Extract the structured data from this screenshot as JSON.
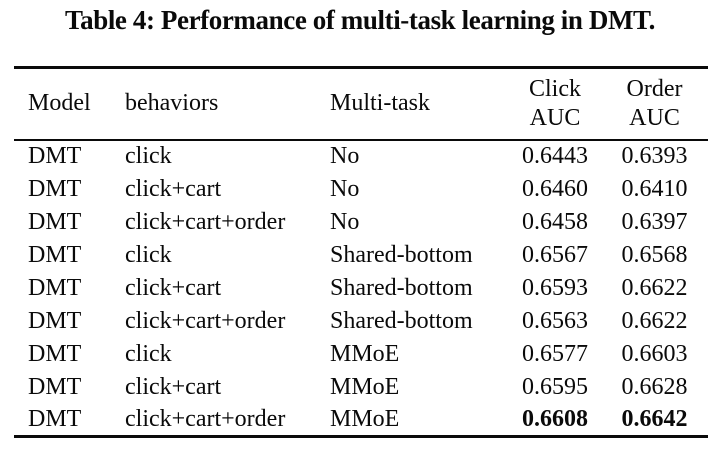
{
  "caption": "Table 4: Performance of multi-task learning in DMT.",
  "table": {
    "columns": {
      "model": "Model",
      "behaviors": "behaviors",
      "multi_task": "Multi-task",
      "click_auc": {
        "line1": "Click",
        "line2": "AUC"
      },
      "order_auc": {
        "line1": "Order",
        "line2": "AUC"
      }
    },
    "rows": [
      {
        "model": "DMT",
        "behaviors": "click",
        "multi_task": "No",
        "click_auc": "0.6443",
        "order_auc": "0.6393",
        "best": false
      },
      {
        "model": "DMT",
        "behaviors": "click+cart",
        "multi_task": "No",
        "click_auc": "0.6460",
        "order_auc": "0.6410",
        "best": false
      },
      {
        "model": "DMT",
        "behaviors": "click+cart+order",
        "multi_task": "No",
        "click_auc": "0.6458",
        "order_auc": "0.6397",
        "best": false
      },
      {
        "model": "DMT",
        "behaviors": "click",
        "multi_task": "Shared-bottom",
        "click_auc": "0.6567",
        "order_auc": "0.6568",
        "best": false
      },
      {
        "model": "DMT",
        "behaviors": "click+cart",
        "multi_task": "Shared-bottom",
        "click_auc": "0.6593",
        "order_auc": "0.6622",
        "best": false
      },
      {
        "model": "DMT",
        "behaviors": "click+cart+order",
        "multi_task": "Shared-bottom",
        "click_auc": "0.6563",
        "order_auc": "0.6622",
        "best": false
      },
      {
        "model": "DMT",
        "behaviors": "click",
        "multi_task": "MMoE",
        "click_auc": "0.6577",
        "order_auc": "0.6603",
        "best": false
      },
      {
        "model": "DMT",
        "behaviors": "click+cart",
        "multi_task": "MMoE",
        "click_auc": "0.6595",
        "order_auc": "0.6628",
        "best": false
      },
      {
        "model": "DMT",
        "behaviors": "click+cart+order",
        "multi_task": "MMoE",
        "click_auc": "0.6608",
        "order_auc": "0.6642",
        "best": true
      }
    ]
  }
}
